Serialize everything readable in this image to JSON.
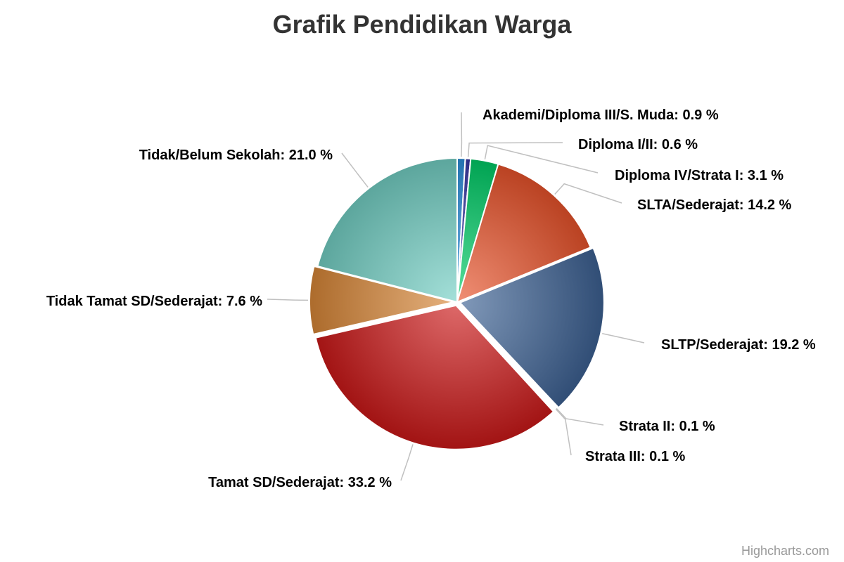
{
  "chart_data": {
    "type": "pie",
    "title": "Grafik Pendidikan Warga",
    "unit_suffix": " %",
    "slices": [
      {
        "name": "Akademi/Diploma III/S. Muda",
        "value": 0.9,
        "color": "#2c8fdc",
        "label_side": "right"
      },
      {
        "name": "Diploma I/II",
        "value": 0.6,
        "color": "#3a3aa8",
        "label_side": "right"
      },
      {
        "name": "Diploma IV/Strata I",
        "value": 3.1,
        "color": "#00cc66",
        "label_side": "right"
      },
      {
        "name": "SLTA/Sederajat",
        "value": 14.2,
        "color": "#e8532a",
        "label_side": "right"
      },
      {
        "name": "SLTP/Sederajat",
        "value": 19.2,
        "color": "#3f6395",
        "label_side": "right"
      },
      {
        "name": "Strata II",
        "value": 0.1,
        "color": "#1f3d66",
        "label_side": "right"
      },
      {
        "name": "Strata III",
        "value": 0.1,
        "color": "#6b2a2a",
        "label_side": "right"
      },
      {
        "name": "Tamat SD/Sederajat",
        "value": 33.2,
        "color": "#cc1a1a",
        "label_side": "left"
      },
      {
        "name": "Tidak Tamat SD/Sederajat",
        "value": 7.6,
        "color": "#d9883a",
        "label_side": "left"
      },
      {
        "name": "Tidak/Belum Sekolah",
        "value": 21.0,
        "color": "#73cfc4",
        "label_side": "left"
      }
    ]
  },
  "credits": "Highcharts.com"
}
